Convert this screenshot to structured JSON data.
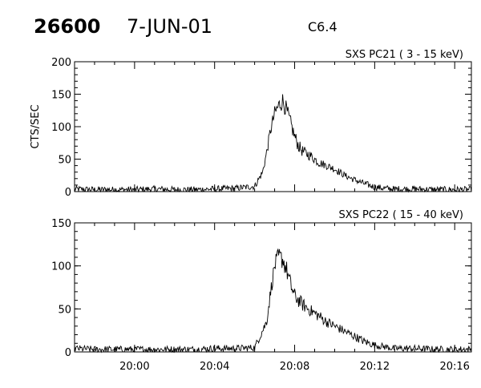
{
  "header": {
    "event_number": "26600",
    "date": "7-JUN-01",
    "flare_class": "C6.4"
  },
  "colors": {
    "background": "#ffffff",
    "ink": "#000000"
  },
  "chart_data": [
    {
      "type": "line",
      "title": "SXS PC21  (  3 - 15 keV)",
      "ylabel": "CTS/SEC",
      "xlabel": "",
      "ylim": [
        0,
        200
      ],
      "yticks": [
        0,
        50,
        100,
        150,
        200
      ],
      "xlim": [
        "19:57:00",
        "20:16:50"
      ],
      "xticks": [
        "20:00",
        "20:04",
        "20:08",
        "20:12",
        "20:16"
      ],
      "x_tick_labels_shown": false,
      "grid": false,
      "series": [
        {
          "x": [
            "19:57:00",
            "19:58:00",
            "19:59:00",
            "20:00:00",
            "20:01:00",
            "20:02:00",
            "20:03:00",
            "20:04:00",
            "20:05:00",
            "20:06:00",
            "20:06:24",
            "20:06:36",
            "20:06:48",
            "20:07:00",
            "20:07:12",
            "20:07:24",
            "20:07:36",
            "20:07:48",
            "20:08:00",
            "20:08:12",
            "20:08:24",
            "20:08:48",
            "20:09:12",
            "20:09:36",
            "20:10:00",
            "20:10:30",
            "20:11:00",
            "20:11:30",
            "20:12:00",
            "20:12:30",
            "20:13:00",
            "20:13:30",
            "20:14:00",
            "20:15:00",
            "20:16:00",
            "20:16:50"
          ],
          "y": [
            4,
            3,
            3,
            3,
            4,
            3,
            3,
            4,
            5,
            8,
            30,
            60,
            95,
            120,
            132,
            140,
            125,
            105,
            85,
            70,
            62,
            55,
            45,
            40,
            35,
            25,
            18,
            12,
            7,
            5,
            4,
            4,
            4,
            3,
            3,
            3
          ],
          "noise_amplitude": [
            5,
            5,
            5,
            5,
            5,
            5,
            5,
            5,
            5,
            5,
            6,
            8,
            10,
            12,
            14,
            14,
            13,
            12,
            11,
            10,
            9,
            8,
            7,
            6,
            6,
            5,
            5,
            5,
            5,
            5,
            5,
            5,
            5,
            5,
            5,
            5
          ]
        }
      ]
    },
    {
      "type": "line",
      "title": "SXS PC22  ( 15 - 40 keV)",
      "ylabel": "",
      "xlabel": "",
      "ylim": [
        0,
        150
      ],
      "yticks": [
        0,
        50,
        100,
        150
      ],
      "xlim": [
        "19:57:00",
        "20:16:50"
      ],
      "xticks": [
        "20:00",
        "20:04",
        "20:08",
        "20:12",
        "20:16"
      ],
      "x_tick_labels_shown": true,
      "grid": false,
      "series": [
        {
          "x": [
            "19:57:00",
            "19:58:00",
            "19:59:00",
            "20:00:00",
            "20:01:00",
            "20:02:00",
            "20:03:00",
            "20:04:00",
            "20:05:00",
            "20:06:00",
            "20:06:36",
            "20:06:48",
            "20:07:00",
            "20:07:12",
            "20:07:24",
            "20:07:36",
            "20:07:48",
            "20:08:00",
            "20:08:24",
            "20:08:48",
            "20:09:12",
            "20:09:36",
            "20:10:00",
            "20:10:30",
            "20:11:00",
            "20:11:30",
            "20:12:00",
            "20:12:30",
            "20:13:00",
            "20:14:00",
            "20:15:00",
            "20:16:00",
            "20:16:50"
          ],
          "y": [
            4,
            3,
            3,
            3,
            3,
            3,
            3,
            4,
            4,
            5,
            35,
            70,
            100,
            110,
            108,
            95,
            78,
            65,
            55,
            48,
            42,
            35,
            30,
            24,
            18,
            12,
            8,
            6,
            4,
            4,
            3,
            3,
            3
          ],
          "noise_amplitude": [
            4,
            4,
            4,
            4,
            4,
            4,
            4,
            4,
            4,
            4,
            6,
            8,
            10,
            12,
            12,
            11,
            10,
            9,
            8,
            7,
            7,
            6,
            6,
            5,
            5,
            5,
            4,
            4,
            4,
            4,
            4,
            4,
            4
          ]
        }
      ]
    }
  ]
}
